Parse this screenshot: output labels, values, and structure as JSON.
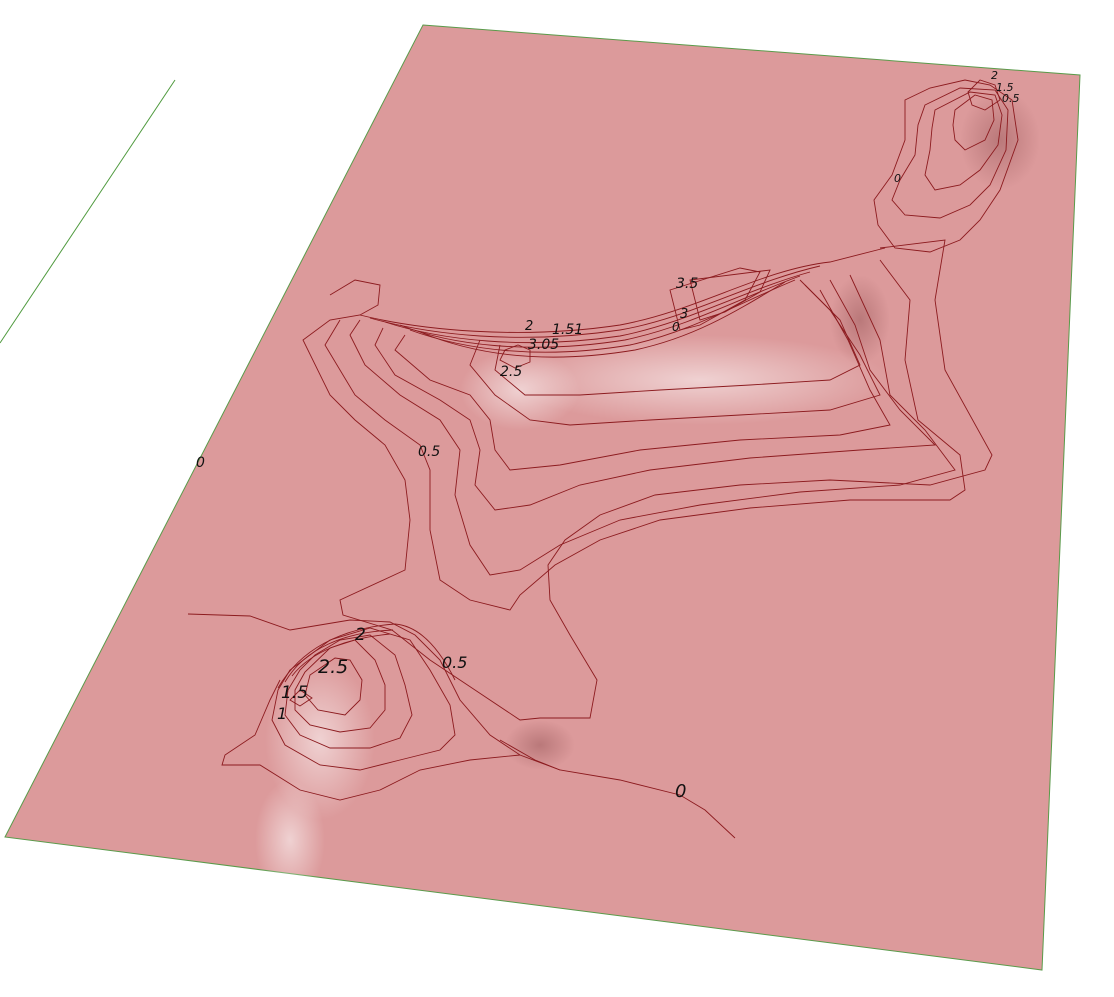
{
  "colors": {
    "background": "#ffffff",
    "terrain_fill": "#dc9a9b",
    "terrain_edge": "#5a9a4a",
    "contour_line": "#8c1b1f",
    "ridge_dark": "#a31c22",
    "axis_line": "#4f9a3e",
    "label_text": "#111111"
  },
  "contour_labels": {
    "upper_ridge": [
      "2",
      "1.51",
      "3.05",
      "2.5",
      "3.5",
      "3",
      "0"
    ],
    "right_peak": [
      "2",
      "1.5",
      "0.5",
      "0"
    ],
    "left_edge": [
      "0"
    ],
    "center": [
      "0.5"
    ],
    "lower_peak": [
      "2",
      "2.5",
      "0.5",
      "1.5",
      "1"
    ],
    "lower_right": [
      "0"
    ]
  }
}
